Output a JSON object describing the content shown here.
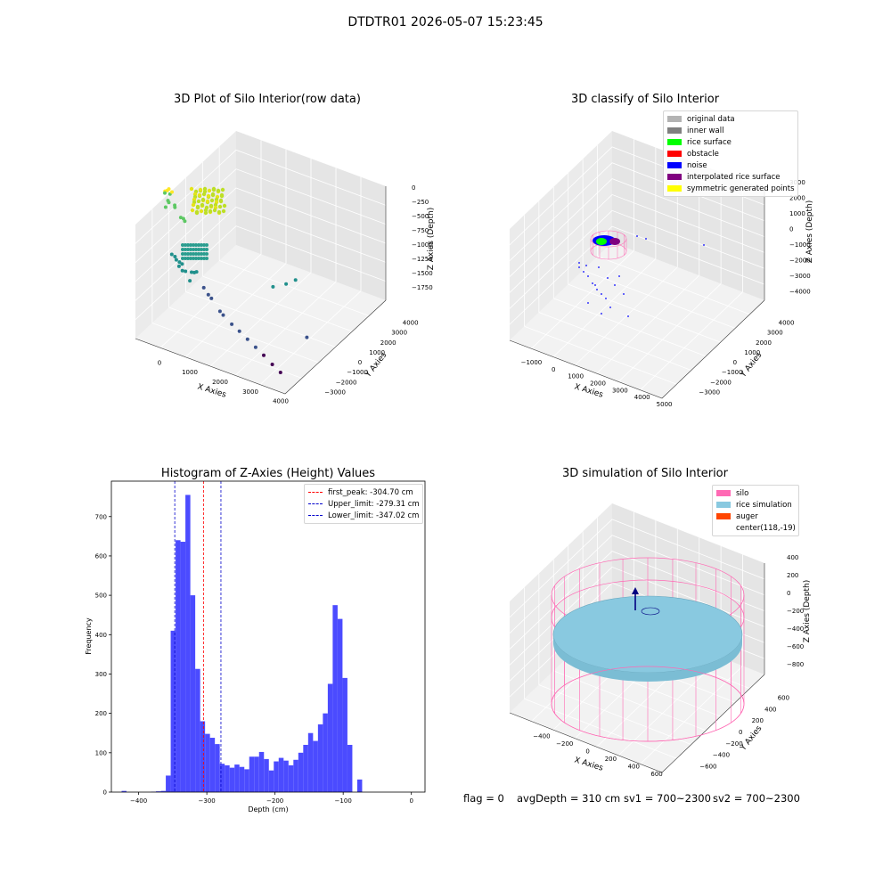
{
  "suptitle": "DTDTR01 2026-05-07 15:23:45",
  "footer": {
    "flag": "flag = 0",
    "avg": "avgDepth = 310 cm",
    "sv1": "sv1 = 700~2300",
    "sv2": "sv2 = 700~2300"
  },
  "colors": {
    "hist_bar": "#4b4bff",
    "peak_line": "#ff0000",
    "limit_line": "#0000cc",
    "silo": "#ff69b4",
    "rice": "#89c9e0",
    "auger": "#ff4500",
    "original": "#b3b3b3",
    "inner_wall": "#808080",
    "rice_surface": "#00ff00",
    "obstacle": "#ff0000",
    "noise": "#0000ff",
    "interp": "#800080",
    "symmetric": "#ffff00"
  },
  "chart_data": [
    {
      "type": "scatter",
      "title": "3D Plot of Silo Interior(row data)",
      "xlabel": "X Axies",
      "ylabel": "Y Axies",
      "zlabel": "Z Axies (Depth)",
      "x_ticks": [
        "0",
        "1000",
        "2000",
        "3000",
        "4000"
      ],
      "y_ticks": [
        "−3000",
        "−2000",
        "−1000",
        "0",
        "1000",
        "2000",
        "3000",
        "4000"
      ],
      "z_ticks": [
        "0",
        "−250",
        "−500",
        "−750",
        "−1000",
        "−1250",
        "−1500",
        "−1750"
      ],
      "xlim": [
        -400,
        4300
      ],
      "ylim": [
        -3500,
        4300
      ],
      "zlim": [
        -1900,
        100
      ],
      "points": [
        {
          "x": 100,
          "y": 400,
          "z": -150
        },
        {
          "x": 150,
          "y": 300,
          "z": -120
        },
        {
          "x": 200,
          "y": 350,
          "z": -100
        },
        {
          "x": 250,
          "y": 500,
          "z": -180
        },
        {
          "x": 120,
          "y": 600,
          "z": -200
        },
        {
          "x": 300,
          "y": 450,
          "z": -140
        },
        {
          "x": 180,
          "y": 200,
          "z": -260
        },
        {
          "x": 220,
          "y": 700,
          "z": -300
        },
        {
          "x": 80,
          "y": 100,
          "z": -320
        },
        {
          "x": 350,
          "y": 250,
          "z": -280
        },
        {
          "x": 400,
          "y": 600,
          "z": -350
        },
        {
          "x": 600,
          "y": 900,
          "z": -500
        },
        {
          "x": 650,
          "y": 700,
          "z": -480
        },
        {
          "x": 700,
          "y": 800,
          "z": -520
        },
        {
          "x": 300,
          "y": -200,
          "z": -900
        },
        {
          "x": 350,
          "y": -100,
          "z": -950
        },
        {
          "x": 400,
          "y": -300,
          "z": -1000
        },
        {
          "x": 450,
          "y": 0,
          "z": -980
        },
        {
          "x": 500,
          "y": -250,
          "z": -1050
        },
        {
          "x": 250,
          "y": 100,
          "z": -920
        },
        {
          "x": 550,
          "y": 200,
          "z": -1020
        },
        {
          "x": 600,
          "y": -150,
          "z": -1060
        },
        {
          "x": 800,
          "y": 100,
          "z": -1080
        },
        {
          "x": 900,
          "y": 300,
          "z": -1100
        },
        {
          "x": 1000,
          "y": 600,
          "z": -1120
        },
        {
          "x": 700,
          "y": -300,
          "z": -1150
        },
        {
          "x": 1100,
          "y": -200,
          "z": -1200
        },
        {
          "x": 1200,
          "y": -400,
          "z": -1250
        },
        {
          "x": 1300,
          "y": -300,
          "z": -1300
        },
        {
          "x": 1500,
          "y": -600,
          "z": -1400
        },
        {
          "x": 1600,
          "y": -500,
          "z": -1450
        },
        {
          "x": 1800,
          "y": -800,
          "z": -1500
        },
        {
          "x": 2000,
          "y": -900,
          "z": -1550
        },
        {
          "x": 2200,
          "y": -1100,
          "z": -1600
        },
        {
          "x": 2400,
          "y": -1300,
          "z": -1650
        },
        {
          "x": 2600,
          "y": -1500,
          "z": -1700
        },
        {
          "x": 2800,
          "y": -1800,
          "z": -1750
        },
        {
          "x": 3000,
          "y": -2000,
          "z": -1800
        },
        {
          "x": 3200,
          "y": 1200,
          "z": -1100
        },
        {
          "x": 3600,
          "y": 1500,
          "z": -1050
        },
        {
          "x": 3900,
          "y": 1800,
          "z": -1000
        },
        {
          "x": 4100,
          "y": 900,
          "z": -1600
        }
      ]
    },
    {
      "type": "scatter",
      "title": "3D classify of Silo Interior",
      "xlabel": "X Axies",
      "ylabel": "Y Axies",
      "zlabel": "Z Axies (Depth)",
      "x_ticks": [
        "−1000",
        "0",
        "1000",
        "2000",
        "3000",
        "4000",
        "5000"
      ],
      "y_ticks": [
        "−3000",
        "−2000",
        "−1000",
        "0",
        "1000",
        "2000",
        "3000",
        "4000"
      ],
      "z_ticks": [
        "3000",
        "2000",
        "1000",
        "0",
        "−1000",
        "−2000",
        "−3000",
        "−4000"
      ],
      "xlim": [
        -1500,
        5400
      ],
      "ylim": [
        -3500,
        4300
      ],
      "zlim": [
        -4400,
        3500
      ],
      "legend": [
        {
          "label": "original data",
          "color": "#b3b3b3"
        },
        {
          "label": "inner wall",
          "color": "#808080"
        },
        {
          "label": "rice surface",
          "color": "#00ff00"
        },
        {
          "label": "obstacle",
          "color": "#ff0000"
        },
        {
          "label": "noise",
          "color": "#0000ff"
        },
        {
          "label": "interpolated rice surface",
          "color": "#800080"
        },
        {
          "label": "symmetric generated points",
          "color": "#ffff00"
        }
      ]
    },
    {
      "type": "bar",
      "title": "Histogram of Z-Axies (Height) Values",
      "xlabel": "Depth (cm)",
      "ylabel": "Frequency",
      "xlim": [
        -440,
        20
      ],
      "ylim": [
        0,
        790
      ],
      "x_ticks": [
        -400,
        -300,
        -200,
        -100,
        0
      ],
      "y_ticks": [
        0,
        100,
        200,
        300,
        400,
        500,
        600,
        700
      ],
      "bin_edges_start": -425,
      "bin_width": 7.2,
      "values": [
        3,
        0,
        0,
        0,
        0,
        0,
        1,
        2,
        3,
        42,
        410,
        640,
        636,
        755,
        500,
        313,
        180,
        148,
        138,
        122,
        72,
        68,
        62,
        70,
        64,
        58,
        90,
        90,
        102,
        84,
        55,
        78,
        87,
        80,
        68,
        82,
        100,
        120,
        150,
        130,
        172,
        200,
        275,
        475,
        440,
        290,
        120,
        0,
        32
      ],
      "vlines": [
        {
          "label": "first_peak: -304.70 cm",
          "x": -304.7,
          "color": "#ff0000"
        },
        {
          "label": "Upper_limit: -279.31 cm",
          "x": -279.31,
          "color": "#0000cc"
        },
        {
          "label": "Lower_limit: -347.02 cm",
          "x": -347.02,
          "color": "#0000cc"
        }
      ],
      "legend_position": "top-right"
    },
    {
      "type": "scatter",
      "title": "3D simulation of Silo Interior",
      "xlabel": "X Axies",
      "ylabel": "Y Axies",
      "zlabel": "Z Axies (Depth)",
      "x_ticks": [
        "−400",
        "−200",
        "0",
        "200",
        "400",
        "600"
      ],
      "y_ticks": [
        "−600",
        "−400",
        "−200",
        "0",
        "200",
        "400",
        "600"
      ],
      "z_ticks": [
        "400",
        "200",
        "0",
        "−200",
        "−400",
        "−600",
        "−800"
      ],
      "xlim": [
        -550,
        750
      ],
      "ylim": [
        -700,
        700
      ],
      "zlim": [
        -900,
        500
      ],
      "legend": [
        {
          "label": "silo",
          "color": "#ff69b4"
        },
        {
          "label": "rice simulation",
          "color": "#89c9e0"
        },
        {
          "label": "auger",
          "color": "#ff4500"
        },
        {
          "label": "center(118,-19)",
          "color": ""
        }
      ],
      "legend_position": "top-right"
    }
  ]
}
